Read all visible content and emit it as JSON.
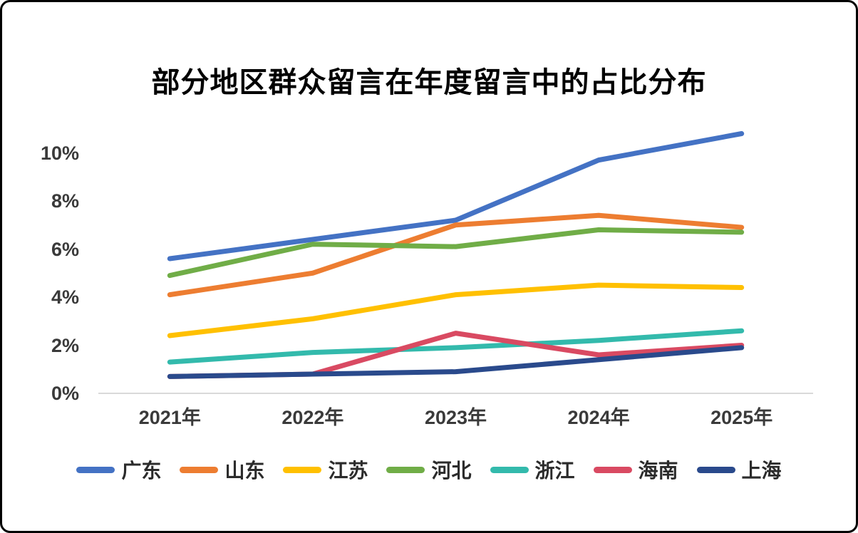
{
  "window": {
    "background": "#ffffff",
    "border_color": "#000000"
  },
  "chart_data": {
    "type": "line",
    "title": "部分地区群众留言在年度留言中的占比分布",
    "categories": [
      "2021年",
      "2022年",
      "2023年",
      "2024年",
      "2025年"
    ],
    "series": [
      {
        "name": "广东",
        "color": "#4472C4",
        "values": [
          5.6,
          6.4,
          7.2,
          9.7,
          10.8
        ]
      },
      {
        "name": "山东",
        "color": "#ED7D31",
        "values": [
          4.1,
          5.0,
          7.0,
          7.4,
          6.9
        ]
      },
      {
        "name": "江苏",
        "color": "#FFC000",
        "values": [
          2.4,
          3.1,
          4.1,
          4.5,
          4.4
        ]
      },
      {
        "name": "河北",
        "color": "#70AD47",
        "values": [
          4.9,
          6.2,
          6.1,
          6.8,
          6.7
        ]
      },
      {
        "name": "浙江",
        "color": "#33BAAC",
        "values": [
          1.3,
          1.7,
          1.9,
          2.2,
          2.6
        ]
      },
      {
        "name": "海南",
        "color": "#D94A62",
        "values": [
          0.7,
          0.8,
          2.5,
          1.6,
          2.0
        ]
      },
      {
        "name": "上海",
        "color": "#2A4A8C",
        "values": [
          0.7,
          0.8,
          0.9,
          1.4,
          1.9
        ]
      }
    ],
    "y_axis": {
      "unit": "%",
      "tick_values": [
        0,
        2,
        4,
        6,
        8,
        10
      ],
      "tick_labels": [
        "0%",
        "2%",
        "4%",
        "6%",
        "8%",
        "10%"
      ],
      "min": 0,
      "max": 10
    },
    "grid": "baseline-only",
    "baseline_color": "#d9d9d9",
    "legend_position": "bottom",
    "line_width": 7
  }
}
